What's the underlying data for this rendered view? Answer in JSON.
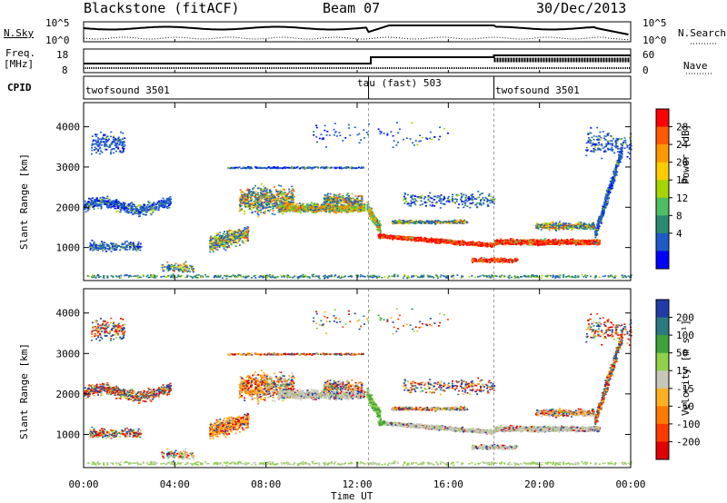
{
  "header": {
    "station": "Blackstone (fitACF)",
    "beam": "Beam 07",
    "date": "30/Dec/2013"
  },
  "top_panels": {
    "nsky_label": "N.Sky",
    "nsky_ticks": [
      "10^5",
      "10^0"
    ],
    "nsearch_label": "N.Search",
    "nsearch_ticks": [
      "10^5",
      "10^0"
    ],
    "freq_label_1": "Freq.",
    "freq_label_2": "[MHz]",
    "freq_ticks": [
      "18",
      "8"
    ],
    "nave_label": "Nave",
    "nave_ticks": [
      "60",
      "0"
    ],
    "cpid_label": "CPID",
    "cpid_segments": [
      {
        "label": "twofsound 3501",
        "start_hour": 0
      },
      {
        "label": "tau (fast) 503",
        "start_hour": 12.5
      },
      {
        "label": "twofsound 3501",
        "start_hour": 18
      }
    ]
  },
  "colorbars": {
    "power": {
      "label": "Power [dB]",
      "ticks": [
        "28",
        "24",
        "20",
        "16",
        "12",
        "8",
        "4"
      ],
      "colors": [
        "#ff0000",
        "#ff5a00",
        "#ff9900",
        "#ffcc00",
        "#a6d500",
        "#4dbf60",
        "#2a8a70",
        "#1e5ac8",
        "#0000ff"
      ]
    },
    "velocity": {
      "label": "Velocity [m s⁻¹]",
      "ticks": [
        "200",
        "100",
        "50",
        "15",
        "-15",
        "-50",
        "-100",
        "-200"
      ],
      "colors": [
        "#1f3ca8",
        "#2a7a82",
        "#3ea33a",
        "#8fd24a",
        "#c8c8b8",
        "#ffb020",
        "#ff7a00",
        "#ff3a00",
        "#e00000"
      ]
    }
  },
  "chart_data": [
    {
      "type": "heatmap",
      "title": "Power",
      "xlabel": "Time UT",
      "ylabel": "Slant Range [km]",
      "x_ticks": [
        "00:00",
        "04:00",
        "08:00",
        "12:00",
        "16:00",
        "20:00",
        "00:00"
      ],
      "y_ticks": [
        1000,
        2000,
        3000,
        4000
      ],
      "xlim_hours": [
        0,
        24
      ],
      "ylim_km": [
        180,
        4600
      ],
      "colorbar_range_db": [
        0,
        30
      ]
    },
    {
      "type": "heatmap",
      "title": "Velocity",
      "xlabel": "Time UT",
      "ylabel": "Slant Range [km]",
      "x_ticks": [
        "00:00",
        "04:00",
        "08:00",
        "12:00",
        "16:00",
        "20:00",
        "00:00"
      ],
      "y_ticks": [
        1000,
        2000,
        3000,
        4000
      ],
      "xlim_hours": [
        0,
        24
      ],
      "ylim_km": [
        180,
        4600
      ],
      "colorbar_range_ms": [
        -250,
        250
      ]
    }
  ]
}
